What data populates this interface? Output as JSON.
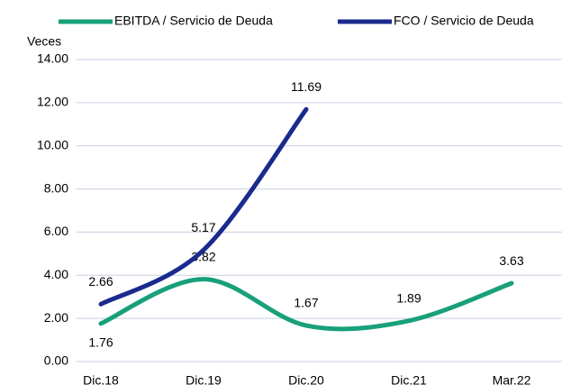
{
  "chart_data": {
    "type": "line",
    "y_axis_label": "Veces",
    "categories": [
      "Dic.18",
      "Dic.19",
      "Dic.20",
      "Dic.21",
      "Mar.22"
    ],
    "series": [
      {
        "name": "EBITDA / Servicio de Deuda",
        "color": "#18a07a",
        "values": [
          1.76,
          3.82,
          1.67,
          1.89,
          3.63
        ]
      },
      {
        "name": "FCO / Servicio de Deuda",
        "color": "#1a2a8e",
        "values": [
          2.66,
          5.17,
          11.69,
          null,
          null
        ]
      }
    ],
    "ylim": [
      0,
      14
    ],
    "yticks": [
      {
        "value": 0,
        "label": "0.00"
      },
      {
        "value": 2,
        "label": "2.00"
      },
      {
        "value": 4,
        "label": "4.00"
      },
      {
        "value": 6,
        "label": "6.00"
      },
      {
        "value": 8,
        "label": "8.00"
      },
      {
        "value": 10,
        "label": "10.00"
      },
      {
        "value": 12,
        "label": "12.00"
      },
      {
        "value": 14,
        "label": "14.00"
      }
    ],
    "grid": true,
    "legend": "top",
    "smooth": true
  }
}
